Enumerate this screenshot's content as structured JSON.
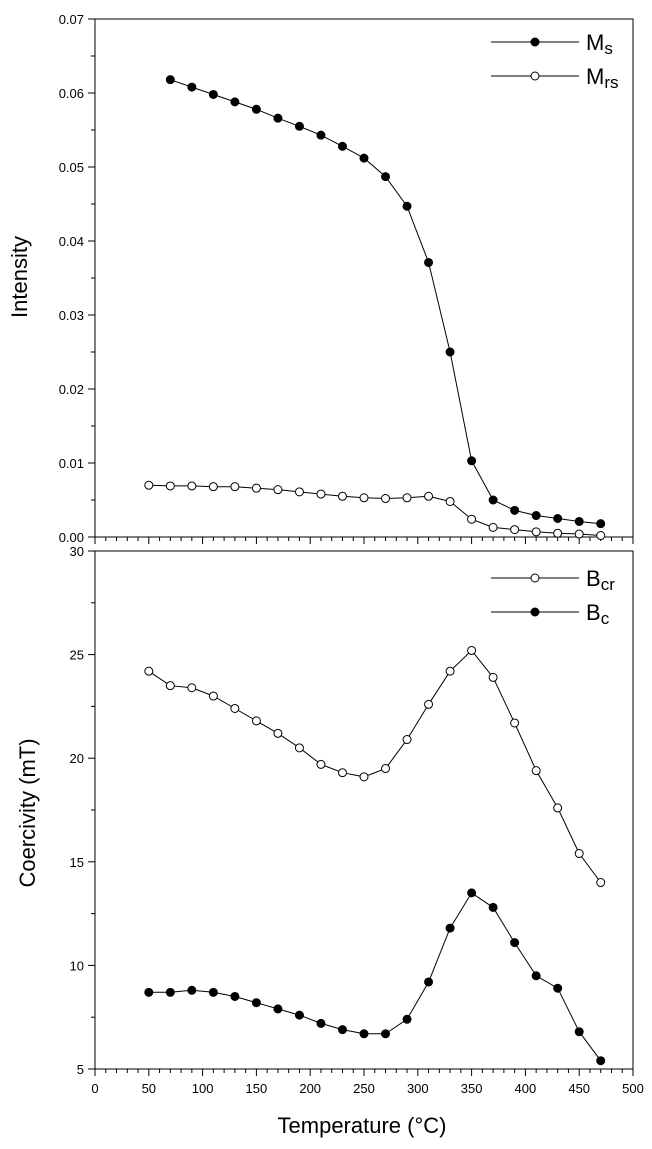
{
  "chart_data": [
    {
      "type": "line",
      "ylabel": "Intensity",
      "xlabel": "",
      "xlim": [
        0,
        500
      ],
      "ylim": [
        0,
        0.07
      ],
      "yticks": [
        "0.00",
        "0.01",
        "0.02",
        "0.03",
        "0.04",
        "0.05",
        "0.06",
        "0.07"
      ],
      "grid": false,
      "legend_position": "top-right",
      "series": [
        {
          "name": "Ms",
          "label_main": "M",
          "label_sub": "s",
          "marker": "filled",
          "x": [
            70,
            90,
            110,
            130,
            150,
            170,
            190,
            210,
            230,
            250,
            270,
            290,
            310,
            330,
            350,
            370,
            390,
            410,
            430,
            450,
            470
          ],
          "y": [
            0.0618,
            0.0608,
            0.0598,
            0.0588,
            0.0578,
            0.0566,
            0.0555,
            0.0543,
            0.0528,
            0.0512,
            0.0487,
            0.0447,
            0.0371,
            0.025,
            0.0103,
            0.005,
            0.0036,
            0.0029,
            0.0025,
            0.0021,
            0.0018
          ]
        },
        {
          "name": "Mrs",
          "label_main": "M",
          "label_sub": "rs",
          "marker": "open",
          "x": [
            50,
            70,
            90,
            110,
            130,
            150,
            170,
            190,
            210,
            230,
            250,
            270,
            290,
            310,
            330,
            350,
            370,
            390,
            410,
            430,
            450,
            470
          ],
          "y": [
            0.007,
            0.0069,
            0.0069,
            0.0068,
            0.0068,
            0.0066,
            0.0064,
            0.0061,
            0.0058,
            0.0055,
            0.0053,
            0.0052,
            0.0053,
            0.0055,
            0.0048,
            0.0024,
            0.0013,
            0.001,
            0.0007,
            0.0005,
            0.0004,
            0.0002
          ]
        }
      ]
    },
    {
      "type": "line",
      "ylabel": "Coercivity (mT)",
      "xlabel": "Temperature (°C)",
      "xlim": [
        0,
        500
      ],
      "ylim": [
        5,
        30
      ],
      "xticks": [
        "0",
        "50",
        "100",
        "150",
        "200",
        "250",
        "300",
        "350",
        "400",
        "450",
        "500"
      ],
      "yticks": [
        "5",
        "10",
        "15",
        "20",
        "25",
        "30"
      ],
      "grid": false,
      "legend_position": "top-right",
      "series": [
        {
          "name": "Bcr",
          "label_main": "B",
          "label_sub": "cr",
          "marker": "open",
          "x": [
            50,
            70,
            90,
            110,
            130,
            150,
            170,
            190,
            210,
            230,
            250,
            270,
            290,
            310,
            330,
            350,
            370,
            390,
            410,
            430,
            450,
            470
          ],
          "y": [
            24.2,
            23.5,
            23.4,
            23.0,
            22.4,
            21.8,
            21.2,
            20.5,
            19.7,
            19.3,
            19.1,
            19.5,
            20.9,
            22.6,
            24.2,
            25.2,
            23.9,
            21.7,
            19.4,
            17.6,
            15.4,
            14.0
          ]
        },
        {
          "name": "Bc",
          "label_main": "B",
          "label_sub": "c",
          "marker": "filled",
          "x": [
            50,
            70,
            90,
            110,
            130,
            150,
            170,
            190,
            210,
            230,
            250,
            270,
            290,
            310,
            330,
            350,
            370,
            390,
            410,
            430,
            450,
            470
          ],
          "y": [
            8.7,
            8.7,
            8.8,
            8.7,
            8.5,
            8.2,
            7.9,
            7.6,
            7.2,
            6.9,
            6.7,
            6.7,
            7.4,
            9.2,
            11.8,
            13.5,
            12.8,
            11.1,
            9.5,
            8.9,
            6.8,
            5.4
          ]
        }
      ]
    }
  ]
}
